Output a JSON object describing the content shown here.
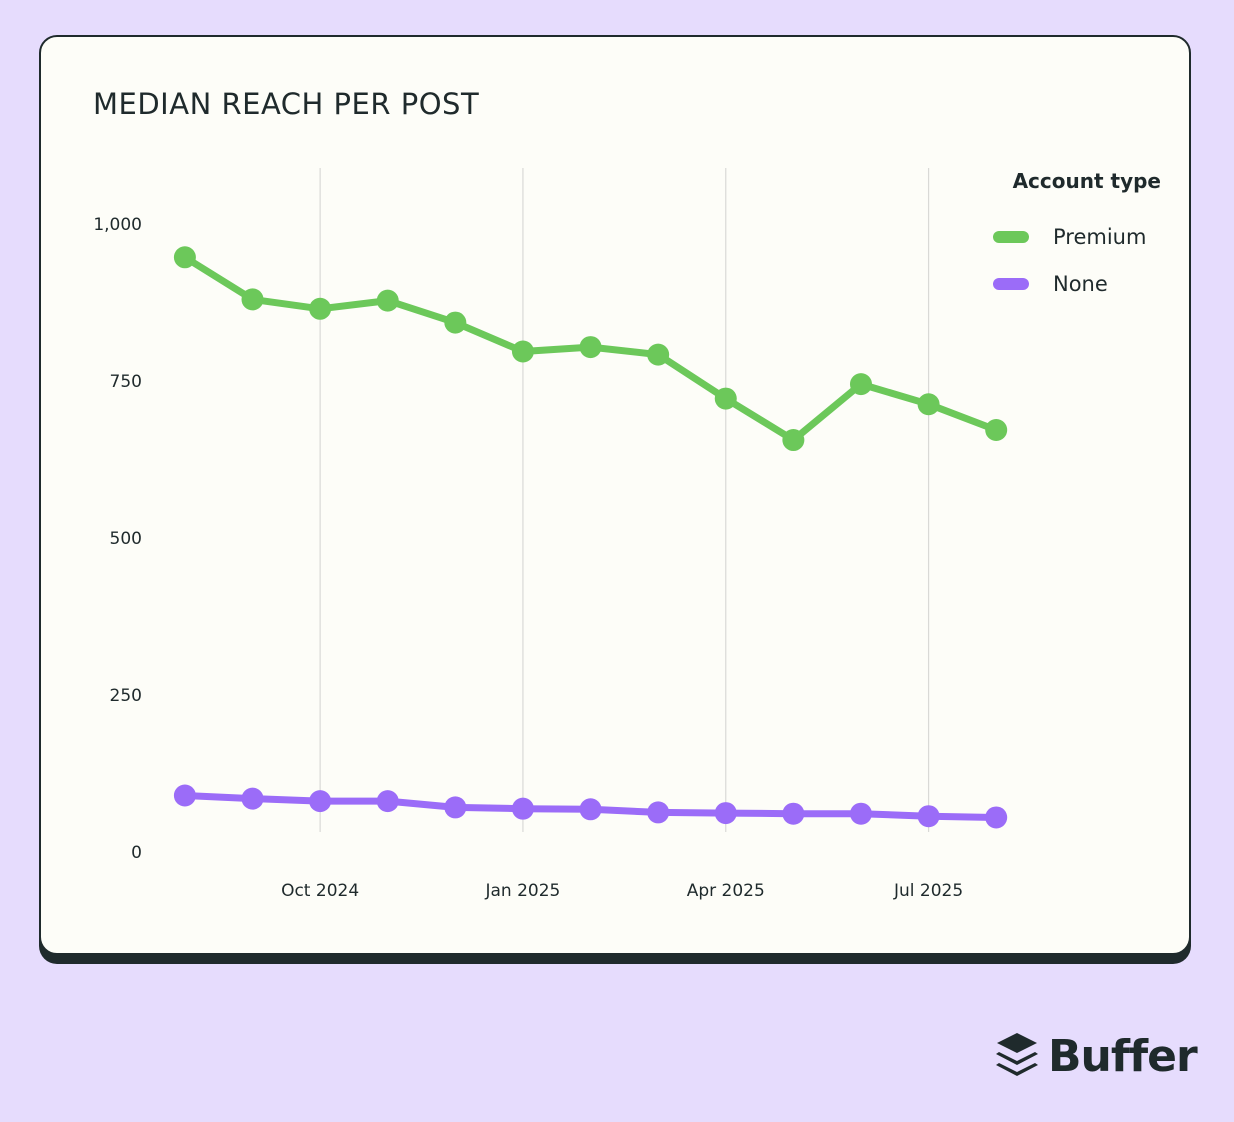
{
  "chart_data": {
    "type": "line",
    "title": "MEDIAN REACH PER POST",
    "xlabel": "",
    "ylabel": "",
    "ylim": [
      0,
      1000
    ],
    "yticks": [
      0,
      250,
      500,
      750,
      1000
    ],
    "ytick_labels": [
      "0",
      "250",
      "500",
      "750",
      "1,000"
    ],
    "x_ticks": [
      {
        "label": "Oct 2024",
        "x": 2
      },
      {
        "label": "Jan 2025",
        "x": 5
      },
      {
        "label": "Apr 2025",
        "x": 8
      },
      {
        "label": "Jul 2025",
        "x": 11
      }
    ],
    "x_range": [
      -0.25,
      12.5
    ],
    "x": [
      0,
      1,
      2,
      3,
      4,
      5,
      6,
      7,
      8,
      9,
      10,
      11,
      12
    ],
    "series": [
      {
        "name": "Premium",
        "color": "#6cc85a",
        "values": [
          947,
          880,
          865,
          878,
          843,
          797,
          804,
          792,
          722,
          656,
          745,
          713,
          672
        ]
      },
      {
        "name": "None",
        "color": "#9b6cf8",
        "values": [
          90,
          85,
          81,
          81,
          71,
          69,
          68,
          63,
          62,
          61,
          61,
          57,
          55
        ]
      }
    ],
    "grid": "vertical",
    "legend": {
      "title": "Account type",
      "position": "top-right"
    }
  },
  "brand": {
    "name": "Buffer",
    "logo_icon": "buffer-stack-icon"
  }
}
